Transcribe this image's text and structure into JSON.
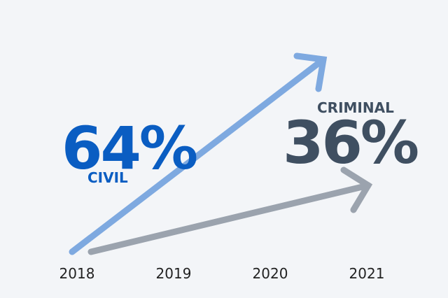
{
  "chart_data": {
    "type": "line",
    "x": [
      "2018",
      "2019",
      "2020",
      "2021"
    ],
    "series": [
      {
        "name": "CIVIL",
        "label": "64%",
        "color": "#7ea9e0",
        "label_color": "#0a5dc2"
      },
      {
        "name": "CRIMINAL",
        "label": "36%",
        "color": "#9ba3ae",
        "label_color": "#3f4f61"
      }
    ],
    "grid": false,
    "legend": "none"
  }
}
